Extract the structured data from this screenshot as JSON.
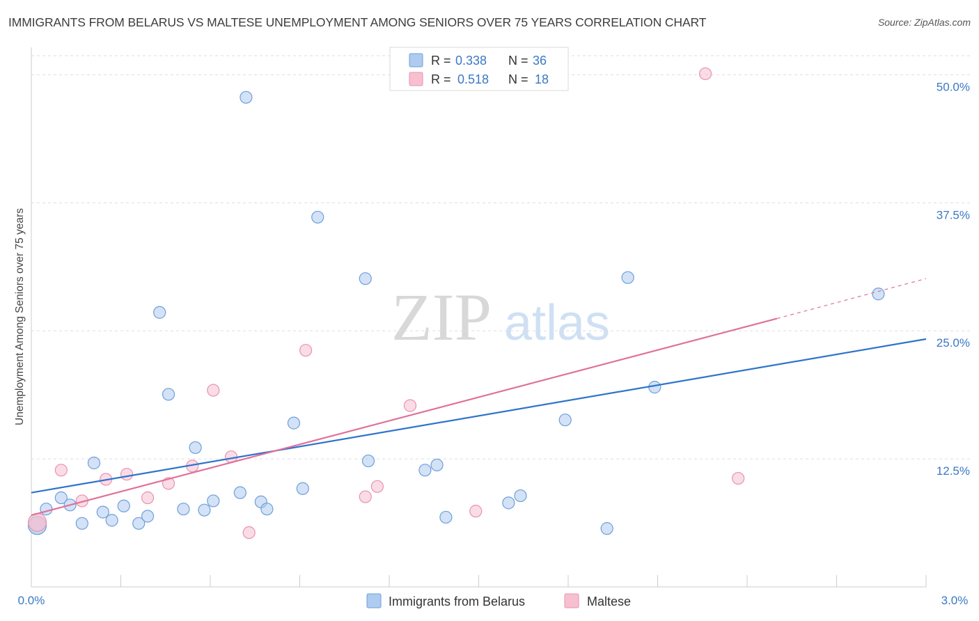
{
  "header": {
    "title": "IMMIGRANTS FROM BELARUS VS MALTESE UNEMPLOYMENT AMONG SENIORS OVER 75 YEARS CORRELATION CHART",
    "source": "Source: ZipAtlas.com"
  },
  "watermark": {
    "zip": "ZIP",
    "atlas": "atlas"
  },
  "legend_box": {
    "rows": [
      {
        "r_label": "R =",
        "r_value": "0.338",
        "n_label": "N =",
        "n_value": "36"
      },
      {
        "r_label": "R =",
        "r_value": "0.518",
        "n_label": "N =",
        "n_value": "18"
      }
    ]
  },
  "colors": {
    "blue_fill": "#aecbf0",
    "blue_stroke": "#6d9fd8",
    "blue_line": "#2e73cc",
    "pink_fill": "#f6c0d1",
    "pink_stroke": "#e892ae",
    "pink_line": "#e0709a",
    "value_text": "#3b78c4",
    "grid": "#dddddd"
  },
  "chart_data": {
    "type": "scatter",
    "title": "IMMIGRANTS FROM BELARUS VS MALTESE UNEMPLOYMENT AMONG SENIORS OVER 75 YEARS CORRELATION CHART",
    "xlabel": "",
    "ylabel": "Unemployment Among Seniors over 75 years",
    "xlim": [
      0,
      3.0
    ],
    "ylim": [
      0,
      52
    ],
    "x_tick_labels": [
      "0.0%",
      "3.0%"
    ],
    "y_ticks": [
      12.5,
      25.0,
      37.5,
      50.0
    ],
    "y_tick_labels": [
      "12.5%",
      "25.0%",
      "37.5%",
      "50.0%"
    ],
    "legend_position": "bottom",
    "series": [
      {
        "name": "Immigrants from Belarus",
        "color": "blue",
        "R": 0.338,
        "N": 36,
        "trend": {
          "x0": 0.0,
          "y0": 9.2,
          "x1": 3.0,
          "y1": 24.2
        },
        "points": [
          {
            "x": 0.02,
            "y": 6.0,
            "big": true
          },
          {
            "x": 0.05,
            "y": 7.6
          },
          {
            "x": 0.1,
            "y": 8.7
          },
          {
            "x": 0.13,
            "y": 8.0
          },
          {
            "x": 0.17,
            "y": 6.2
          },
          {
            "x": 0.21,
            "y": 12.1
          },
          {
            "x": 0.24,
            "y": 7.3
          },
          {
            "x": 0.27,
            "y": 6.5
          },
          {
            "x": 0.31,
            "y": 7.9
          },
          {
            "x": 0.36,
            "y": 6.2
          },
          {
            "x": 0.39,
            "y": 6.9
          },
          {
            "x": 0.43,
            "y": 26.8
          },
          {
            "x": 0.46,
            "y": 18.8
          },
          {
            "x": 0.51,
            "y": 7.6
          },
          {
            "x": 0.55,
            "y": 13.6
          },
          {
            "x": 0.58,
            "y": 7.5
          },
          {
            "x": 0.61,
            "y": 8.4
          },
          {
            "x": 0.7,
            "y": 9.2
          },
          {
            "x": 0.72,
            "y": 47.8
          },
          {
            "x": 0.77,
            "y": 8.3
          },
          {
            "x": 0.79,
            "y": 7.6
          },
          {
            "x": 0.88,
            "y": 16.0
          },
          {
            "x": 0.91,
            "y": 9.6
          },
          {
            "x": 0.96,
            "y": 36.1
          },
          {
            "x": 1.12,
            "y": 30.1
          },
          {
            "x": 1.13,
            "y": 12.3
          },
          {
            "x": 1.32,
            "y": 11.4
          },
          {
            "x": 1.36,
            "y": 11.9
          },
          {
            "x": 1.39,
            "y": 6.8
          },
          {
            "x": 1.6,
            "y": 8.2
          },
          {
            "x": 1.64,
            "y": 8.9
          },
          {
            "x": 1.79,
            "y": 16.3
          },
          {
            "x": 1.93,
            "y": 5.7
          },
          {
            "x": 2.0,
            "y": 30.2
          },
          {
            "x": 2.09,
            "y": 19.5
          },
          {
            "x": 2.84,
            "y": 28.6
          }
        ]
      },
      {
        "name": "Maltese",
        "color": "pink",
        "R": 0.518,
        "N": 18,
        "trend": {
          "x0": 0.0,
          "y0": 7.0,
          "x1": 2.5,
          "y1": 26.2,
          "dash_to_x": 3.0,
          "dash_to_y": 30.1
        },
        "points": [
          {
            "x": 0.02,
            "y": 6.3,
            "big": true
          },
          {
            "x": 0.1,
            "y": 11.4
          },
          {
            "x": 0.17,
            "y": 8.4
          },
          {
            "x": 0.25,
            "y": 10.5
          },
          {
            "x": 0.32,
            "y": 11.0
          },
          {
            "x": 0.39,
            "y": 8.7
          },
          {
            "x": 0.46,
            "y": 10.1
          },
          {
            "x": 0.54,
            "y": 11.8
          },
          {
            "x": 0.61,
            "y": 19.2
          },
          {
            "x": 0.67,
            "y": 12.7
          },
          {
            "x": 0.73,
            "y": 5.3
          },
          {
            "x": 0.92,
            "y": 23.1
          },
          {
            "x": 1.12,
            "y": 8.8
          },
          {
            "x": 1.16,
            "y": 9.8
          },
          {
            "x": 1.27,
            "y": 17.7
          },
          {
            "x": 1.49,
            "y": 7.4
          },
          {
            "x": 2.26,
            "y": 50.1
          },
          {
            "x": 2.37,
            "y": 10.6
          }
        ]
      }
    ]
  }
}
